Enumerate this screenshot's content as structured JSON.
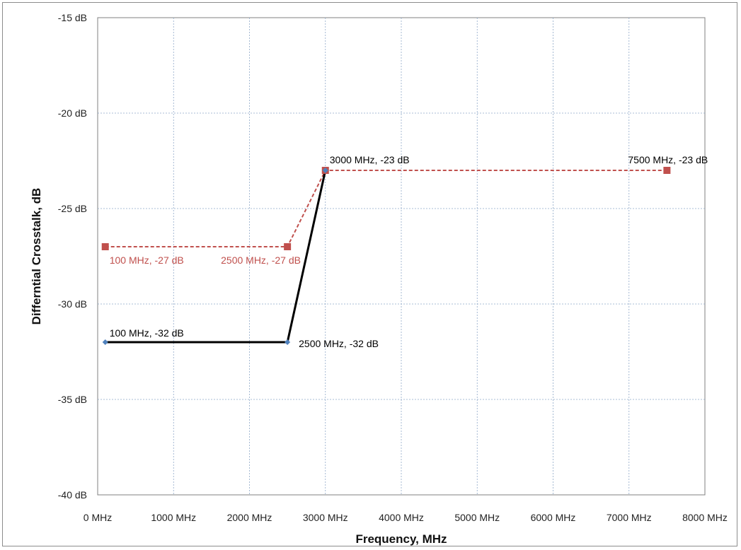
{
  "chart_data": {
    "type": "line",
    "title": "",
    "xlabel": "Frequency, MHz",
    "ylabel": "Differntial Crosstalk, dB",
    "xlim": [
      0,
      8000
    ],
    "ylim": [
      -40,
      -15
    ],
    "x_ticks": [
      "0 MHz",
      "1000 MHz",
      "2000 MHz",
      "3000 MHz",
      "4000 MHz",
      "5000 MHz",
      "6000 MHz",
      "7000 MHz",
      "8000 MHz"
    ],
    "y_ticks": [
      "-15 dB",
      "-20 dB",
      "-25 dB",
      "-30 dB",
      "-35 dB",
      "-40 dB"
    ],
    "grid": true,
    "legend": "none",
    "series": [
      {
        "color": "#c0504d",
        "line_color": "#c0504d",
        "line_style": "dashed",
        "marker": "square",
        "points": [
          {
            "x": 100,
            "y": -27
          },
          {
            "x": 2500,
            "y": -27
          },
          {
            "x": 3000,
            "y": -23
          },
          {
            "x": 7500,
            "y": -23
          }
        ]
      },
      {
        "color": "#4f81bd",
        "line_color": "#000000",
        "line_style": "solid",
        "marker": "diamond",
        "points": [
          {
            "x": 100,
            "y": -32
          },
          {
            "x": 2500,
            "y": -32
          },
          {
            "x": 3000,
            "y": -23
          }
        ]
      }
    ],
    "annotations": [
      {
        "text": "3000 MHz, -23 dB",
        "color": "#000000"
      },
      {
        "text": "7500 MHz, -23 dB",
        "color": "#000000"
      },
      {
        "text": "100 MHz, -27 dB",
        "color": "#c0504d"
      },
      {
        "text": "2500 MHz, -27 dB",
        "color": "#c0504d"
      },
      {
        "text": "100 MHz, -32 dB",
        "color": "#000000"
      },
      {
        "text": "2500 MHz, -32 dB",
        "color": "#000000"
      }
    ]
  }
}
